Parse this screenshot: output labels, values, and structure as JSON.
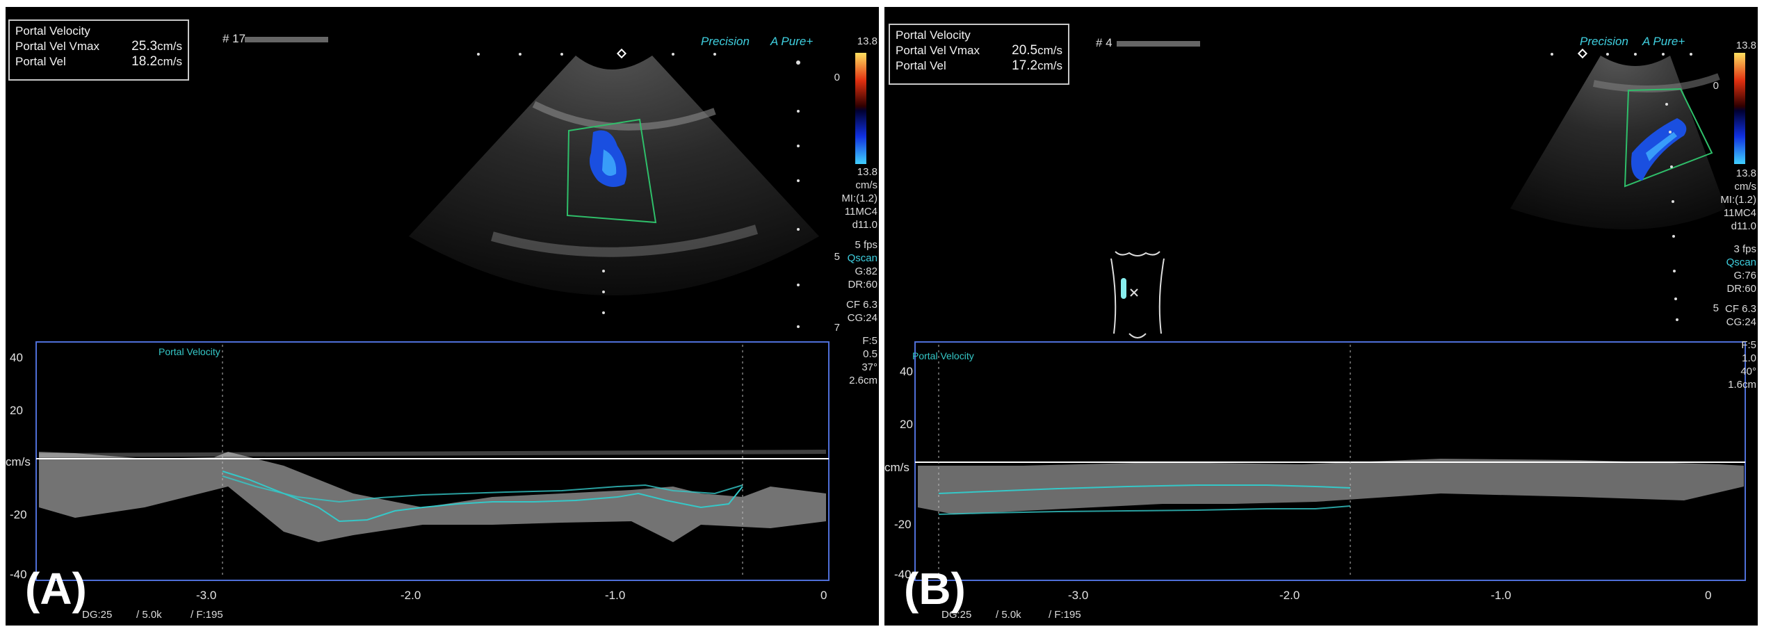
{
  "panels": {
    "A": {
      "letter": "(A)",
      "measure_title": "Portal Velocity",
      "vmax_label": "Portal Vel Vmax",
      "vmax_value": "25.3",
      "vel_label": "Portal Vel",
      "vel_value": "18.2",
      "unit": "cm/s",
      "frame": "# 17",
      "brand1": "Precision",
      "brand2": "A Pure+",
      "color_scale_top": "13.8",
      "color_scale_bottom": "13.8",
      "color_scale_unit": "cm/s",
      "mi": "MI:(1.2)",
      "probe": "11MC4",
      "depth": "d11.0",
      "fps": "5 fps",
      "qscan": "Qscan",
      "gain": "G:82",
      "dr": "DR:60",
      "cf": "CF 6.3",
      "cg": "CG:24",
      "filter": "F:5",
      "angle_sv": "0.5",
      "angle": "37°",
      "sv_depth": "2.6cm",
      "depth_marks": [
        "0",
        "5",
        "7"
      ],
      "spectral_label": "Portal Velocity",
      "y_ticks": [
        "40",
        "20",
        "cm/s",
        "-20",
        "-40"
      ],
      "x_ticks": [
        "-3.0",
        "-2.0",
        "-1.0",
        "0"
      ],
      "dg": "DG:25",
      "prf": "/ 5.0k",
      "frate": "/ F:195"
    },
    "B": {
      "letter": "(B)",
      "measure_title": "Portal Velocity",
      "vmax_label": "Portal Vel Vmax",
      "vmax_value": "20.5",
      "vel_label": "Portal Vel",
      "vel_value": "17.2",
      "unit": "cm/s",
      "frame": "# 4",
      "brand1": "Precision",
      "brand2": "A Pure+",
      "color_scale_top": "13.8",
      "color_scale_bottom": "13.8",
      "color_scale_unit": "cm/s",
      "mi": "MI:(1.2)",
      "probe": "11MC4",
      "depth": "d11.0",
      "fps": "3 fps",
      "qscan": "Qscan",
      "gain": "G:76",
      "dr": "DR:60",
      "cf": "CF 6.3",
      "cg": "CG:24",
      "filter": "F:5",
      "angle_sv": "1.0",
      "angle": "40°",
      "sv_depth": "1.6cm",
      "depth_marks": [
        "0",
        "5"
      ],
      "spectral_label": "Portal Velocity",
      "y_ticks": [
        "40",
        "20",
        "cm/s",
        "-20",
        "-40"
      ],
      "x_ticks": [
        "-3.0",
        "-2.0",
        "-1.0",
        "0"
      ],
      "dg": "DG:25",
      "prf": "/ 5.0k",
      "frate": "/ F:195"
    }
  },
  "colors": {
    "trace": "#35c8c8",
    "frame_blue": "#4f6fd8",
    "doppler_blue": "#1a4fe0",
    "roi_green": "#2fbf6a"
  }
}
